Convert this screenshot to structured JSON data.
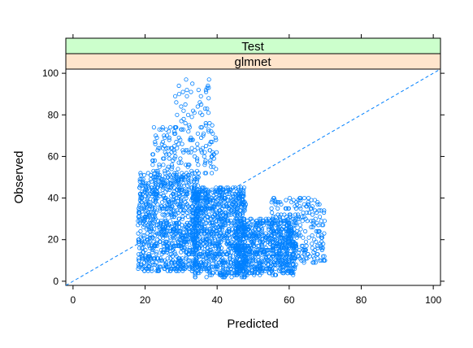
{
  "chart_data": {
    "type": "scatter",
    "title": "",
    "xlabel": "Predicted",
    "ylabel": "Observed",
    "xlim": [
      -2,
      102
    ],
    "ylim": [
      -2,
      102
    ],
    "xticks": [
      0,
      20,
      40,
      60,
      80,
      100
    ],
    "yticks": [
      0,
      20,
      40,
      60,
      80,
      100
    ],
    "strips": [
      "Test",
      "glmnet"
    ],
    "strip_colors": [
      "#ccffcc",
      "#ffe5cc"
    ],
    "point_color": "#0080ff",
    "reference_line": {
      "type": "identity",
      "style": "dashed",
      "color": "#0080ff"
    },
    "series": [
      {
        "clusters": [
          {
            "x": [
              18,
              35
            ],
            "y": [
              5,
              52
            ],
            "n": 900
          },
          {
            "x": [
              33,
              48
            ],
            "y": [
              2,
              45
            ],
            "n": 900
          },
          {
            "x": [
              45,
              62
            ],
            "y": [
              3,
              30
            ],
            "n": 700
          },
          {
            "x": [
              55,
              70
            ],
            "y": [
              8,
              40
            ],
            "n": 250
          },
          {
            "x": [
              22,
              40
            ],
            "y": [
              50,
              75
            ],
            "n": 160
          },
          {
            "x": [
              28,
              38
            ],
            "y": [
              75,
              97
            ],
            "n": 40
          }
        ]
      }
    ]
  }
}
